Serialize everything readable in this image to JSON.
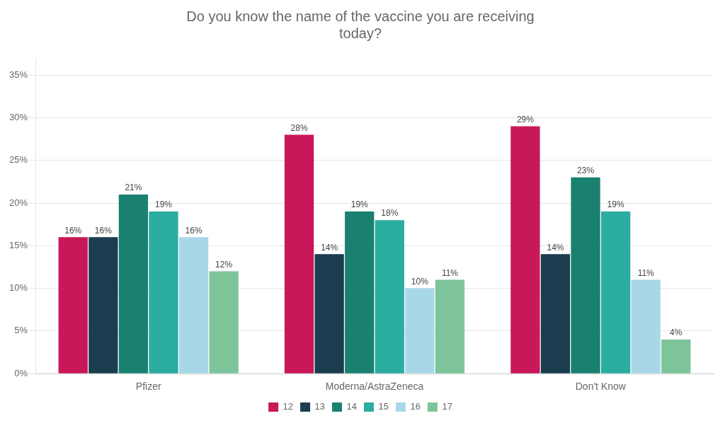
{
  "chart_data": {
    "type": "bar",
    "title": "Do you know the name of the vaccine you are receiving\ntoday?",
    "categories": [
      "Pfizer",
      "Moderna/AstraZeneca",
      "Don't Know"
    ],
    "series": [
      {
        "name": "12",
        "color": "#C8185A",
        "values": [
          16,
          28,
          29
        ],
        "value_labels": [
          "16%",
          "28%",
          "29%"
        ]
      },
      {
        "name": "13",
        "color": "#1A3D4F",
        "values": [
          16,
          14,
          14
        ],
        "value_labels": [
          "16%",
          "14%",
          "14%"
        ]
      },
      {
        "name": "14",
        "color": "#1A8070",
        "values": [
          21,
          19,
          23
        ],
        "value_labels": [
          "21%",
          "19%",
          "23%"
        ]
      },
      {
        "name": "15",
        "color": "#2BADA0",
        "values": [
          19,
          18,
          19
        ],
        "value_labels": [
          "19%",
          "18%",
          "19%"
        ]
      },
      {
        "name": "16",
        "color": "#A8D8E8",
        "values": [
          16,
          10,
          11
        ],
        "value_labels": [
          "16%",
          "10%",
          "11%"
        ]
      },
      {
        "name": "17",
        "color": "#7DC49A",
        "values": [
          12,
          11,
          4
        ],
        "value_labels": [
          "12%",
          "11%",
          "4%"
        ]
      }
    ],
    "ylim": [
      0,
      37
    ],
    "yticks": [
      {
        "value": 0,
        "label": "0%"
      },
      {
        "value": 5,
        "label": "5%"
      },
      {
        "value": 10,
        "label": "10%"
      },
      {
        "value": 15,
        "label": "15%"
      },
      {
        "value": 20,
        "label": "20%"
      },
      {
        "value": 25,
        "label": "25%"
      },
      {
        "value": 30,
        "label": "30%"
      },
      {
        "value": 35,
        "label": "35%"
      }
    ],
    "grid": true,
    "legend": "bottom",
    "data_labels": true
  }
}
